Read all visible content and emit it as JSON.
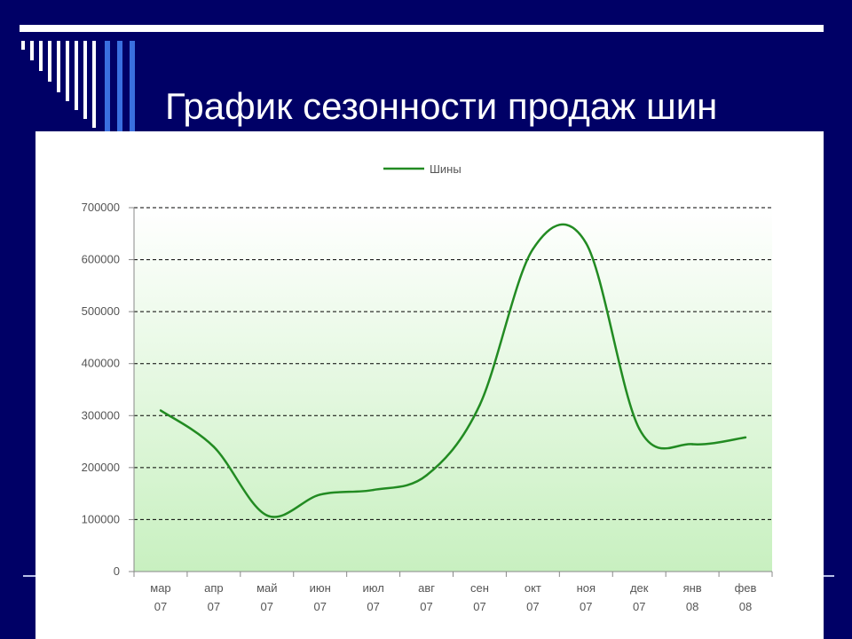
{
  "slide": {
    "title": "График сезонности продаж шин"
  },
  "colors": {
    "background": "#000066",
    "line": "#228b22",
    "grid": "#000000",
    "plot_gradient_top": "#ffffff",
    "plot_gradient_bottom": "#c8f0c0"
  },
  "chart_data": {
    "type": "line",
    "legend": "top",
    "grid": true,
    "ylim": [
      0,
      700000
    ],
    "yticks": [
      "0",
      "100000",
      "200000",
      "300000",
      "400000",
      "500000",
      "600000",
      "700000"
    ],
    "categories": [
      [
        "мар",
        "07"
      ],
      [
        "апр",
        "07"
      ],
      [
        "май",
        "07"
      ],
      [
        "июн",
        "07"
      ],
      [
        "июл",
        "07"
      ],
      [
        "авг",
        "07"
      ],
      [
        "сен",
        "07"
      ],
      [
        "окт",
        "07"
      ],
      [
        "ноя",
        "07"
      ],
      [
        "дек",
        "07"
      ],
      [
        "янв",
        "08"
      ],
      [
        "фев",
        "08"
      ]
    ],
    "series": [
      {
        "name": "Шины",
        "values": [
          310000,
          240000,
          108000,
          148000,
          157000,
          185000,
          320000,
          620000,
          632000,
          275000,
          245000,
          258000
        ]
      }
    ]
  }
}
